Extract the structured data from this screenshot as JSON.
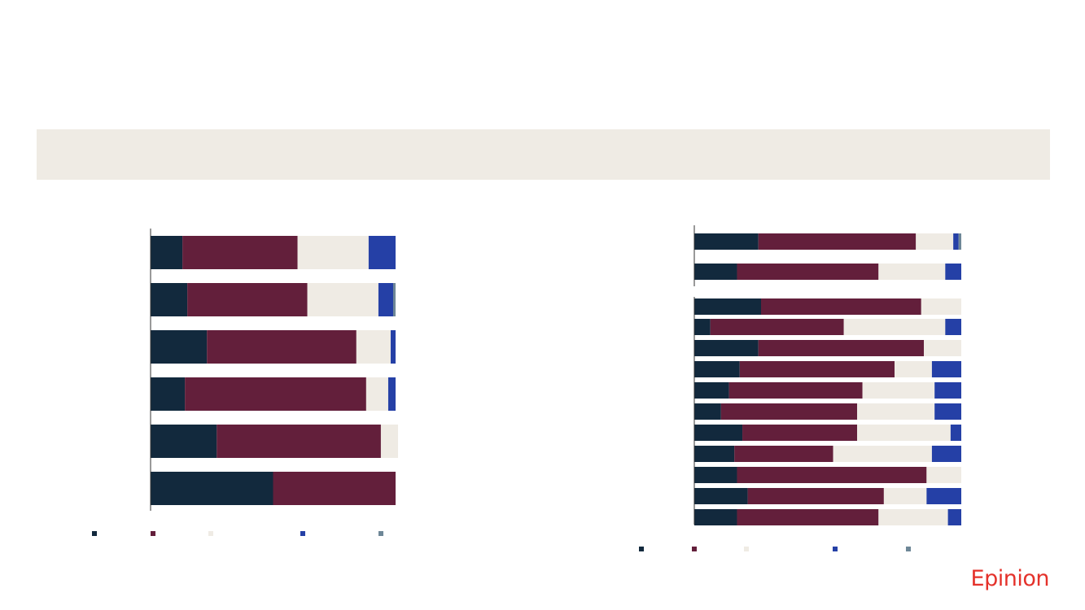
{
  "chart_data": [
    {
      "type": "stacked-bar",
      "orientation": "horizontal",
      "categories": [
        null,
        null,
        null,
        null,
        null,
        null
      ],
      "xlim": [
        0,
        100
      ],
      "series": [
        {
          "color": "#12293d",
          "values": [
            13,
            15,
            23,
            14,
            27,
            50
          ]
        },
        {
          "color": "#631f3b",
          "values": [
            47,
            49,
            61,
            74,
            67,
            50
          ]
        },
        {
          "color": "#efebe4",
          "values": [
            29,
            29,
            14,
            9,
            7,
            0
          ]
        },
        {
          "color": "#2540a6",
          "values": [
            11,
            6,
            2,
            3,
            0,
            0
          ]
        },
        {
          "color": "#6e8797",
          "values": [
            0,
            1,
            0,
            0,
            0,
            0
          ]
        }
      ]
    },
    {
      "type": "stacked-bar",
      "orientation": "horizontal",
      "categories": [
        null,
        null,
        null,
        null,
        null,
        null,
        null,
        null,
        null,
        null,
        null,
        null,
        null
      ],
      "xlim": [
        0,
        100
      ],
      "series": [
        {
          "color": "#12293d",
          "values": [
            24,
            16,
            25,
            6,
            24,
            17,
            13,
            10,
            18,
            15,
            16,
            20,
            16
          ]
        },
        {
          "color": "#631f3b",
          "values": [
            59,
            53,
            60,
            50,
            62,
            58,
            50,
            51,
            43,
            37,
            71,
            51,
            53
          ]
        },
        {
          "color": "#efebe4",
          "values": [
            14,
            25,
            15,
            38,
            14,
            14,
            27,
            29,
            35,
            37,
            13,
            16,
            26
          ]
        },
        {
          "color": "#2540a6",
          "values": [
            2,
            6,
            0,
            6,
            0,
            11,
            10,
            10,
            4,
            11,
            0,
            13,
            5
          ]
        },
        {
          "color": "#6e8797",
          "values": [
            1,
            0,
            0,
            0,
            0,
            0,
            0,
            0,
            0,
            0,
            0,
            0,
            0
          ]
        }
      ]
    }
  ],
  "logo": "Epinion"
}
